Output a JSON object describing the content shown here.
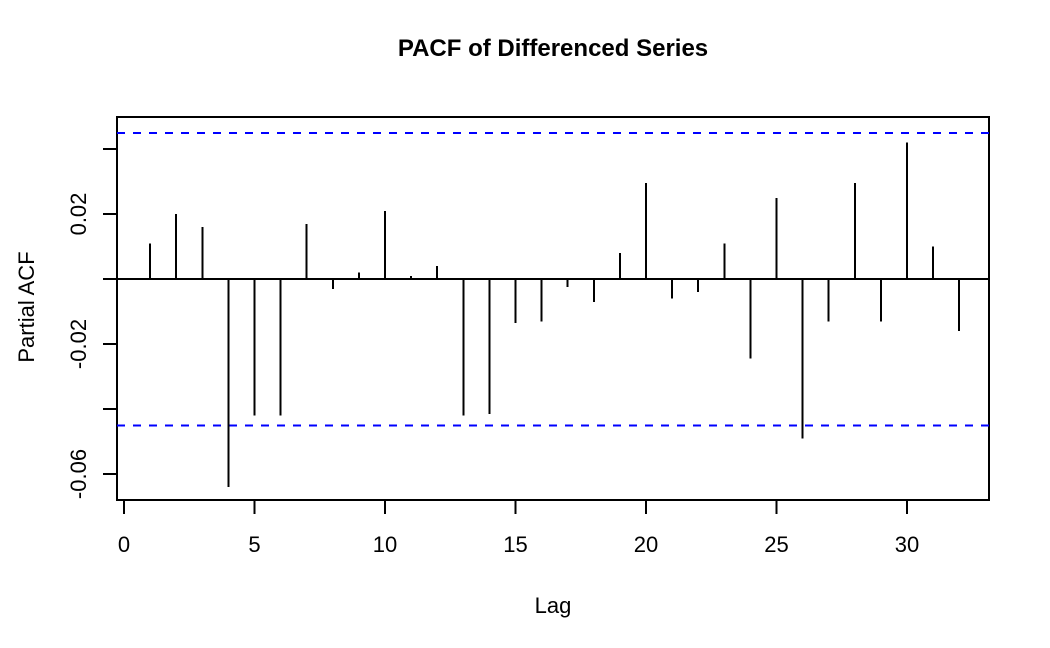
{
  "window": {
    "background": "#ffffff"
  },
  "chart_data": {
    "type": "bar",
    "subtype": "pacf-stem-plot",
    "title": "PACF of Differenced Series",
    "xlabel": "Lag",
    "ylabel": "Partial ACF",
    "lags": [
      1,
      2,
      3,
      4,
      5,
      6,
      7,
      8,
      9,
      10,
      11,
      12,
      13,
      14,
      15,
      16,
      17,
      18,
      19,
      20,
      21,
      22,
      23,
      24,
      25,
      26,
      27,
      28,
      29,
      30,
      31,
      32
    ],
    "values": [
      0.011,
      0.02,
      0.016,
      -0.064,
      -0.042,
      -0.042,
      0.017,
      -0.003,
      0.002,
      0.021,
      0.001,
      0.004,
      -0.042,
      -0.0415,
      -0.0135,
      -0.013,
      -0.0025,
      -0.007,
      0.008,
      0.0295,
      -0.006,
      -0.004,
      0.011,
      -0.0245,
      0.025,
      -0.049,
      -0.013,
      0.0295,
      -0.013,
      0.042,
      0.01,
      -0.016
    ],
    "confidence_bounds": {
      "upper": 0.045,
      "lower": -0.045,
      "line_style": "dashed",
      "color": "#0000ff"
    },
    "x_ticks": [
      {
        "v": 0,
        "label": "0"
      },
      {
        "v": 5,
        "label": "5"
      },
      {
        "v": 10,
        "label": "10"
      },
      {
        "v": 15,
        "label": "15"
      },
      {
        "v": 20,
        "label": "20"
      },
      {
        "v": 25,
        "label": "25"
      },
      {
        "v": 30,
        "label": "30"
      }
    ],
    "y_ticks": [
      {
        "v": 0.04,
        "label": ""
      },
      {
        "v": 0.02,
        "label": "0.02"
      },
      {
        "v": 0.0,
        "label": ""
      },
      {
        "v": -0.02,
        "label": "-0.02"
      },
      {
        "v": -0.04,
        "label": ""
      },
      {
        "v": -0.06,
        "label": "-0.06"
      }
    ],
    "xlim": [
      -0.3,
      33.1
    ],
    "ylim": [
      -0.067,
      0.05
    ],
    "grid": false,
    "legend": null,
    "bar_color": "#000000",
    "axis_color": "#000000",
    "background": "#ffffff"
  }
}
